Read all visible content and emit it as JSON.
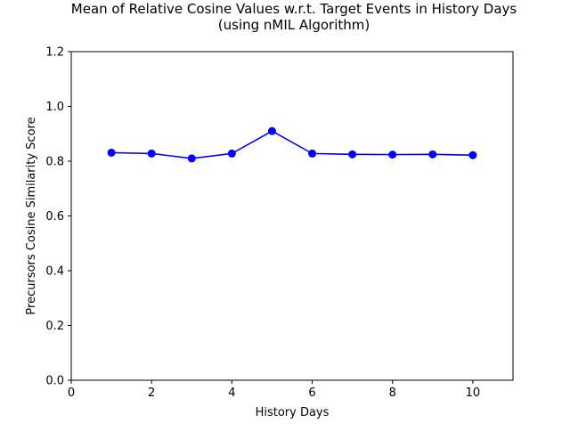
{
  "chart_data": {
    "type": "line",
    "title_line1": "Mean of Relative Cosine Values w.r.t. Target Events in History Days",
    "title_line2": "(using nMIL Algorithm)",
    "xlabel": "History Days",
    "ylabel": "Precursors Cosine Similarity Score",
    "xlim": [
      0,
      11
    ],
    "ylim": [
      0,
      1.2
    ],
    "xticks": [
      0,
      2,
      4,
      6,
      8,
      10
    ],
    "yticks": [
      0.0,
      0.2,
      0.4,
      0.6,
      0.8,
      1.0,
      1.2
    ],
    "grid": false,
    "series": [
      {
        "color": "#0000ff",
        "marker": "circle",
        "x": [
          1,
          2,
          3,
          4,
          5,
          6,
          7,
          8,
          9,
          10
        ],
        "y": [
          0.831,
          0.828,
          0.81,
          0.828,
          0.91,
          0.828,
          0.825,
          0.824,
          0.825,
          0.822
        ]
      }
    ]
  }
}
